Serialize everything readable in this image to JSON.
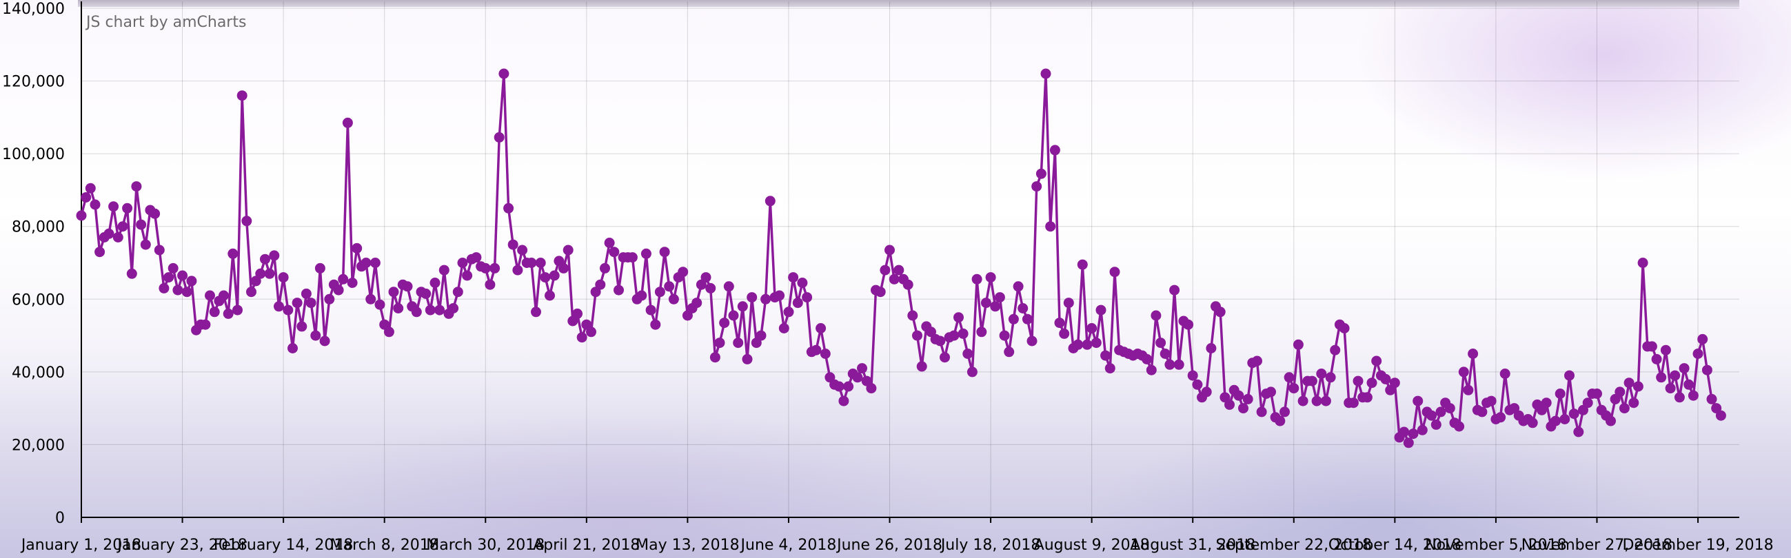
{
  "credit_text": "JS chart by amCharts",
  "colors": {
    "series": "#8a1a99",
    "grid": "#cfcfcf"
  },
  "chart_data": {
    "type": "line",
    "title": "",
    "xlabel": "",
    "ylabel": "",
    "ylim": [
      0,
      140000
    ],
    "yticks": [
      "0",
      "20,000",
      "40,000",
      "60,000",
      "80,000",
      "100,000",
      "120,000",
      "140,000"
    ],
    "xlim": [
      "2018-01-01",
      "2018-12-28"
    ],
    "xticks": [
      {
        "date": "2018-01-01",
        "label": "January 1, 2018"
      },
      {
        "date": "2018-01-23",
        "label": "January 23, 2018"
      },
      {
        "date": "2018-02-14",
        "label": "February 14, 2018"
      },
      {
        "date": "2018-03-08",
        "label": "March 8, 2018"
      },
      {
        "date": "2018-03-30",
        "label": "March 30, 2018"
      },
      {
        "date": "2018-04-21",
        "label": "April 21, 2018"
      },
      {
        "date": "2018-05-13",
        "label": "May 13, 2018"
      },
      {
        "date": "2018-06-04",
        "label": "June 4, 2018"
      },
      {
        "date": "2018-06-26",
        "label": "June 26, 2018"
      },
      {
        "date": "2018-07-18",
        "label": "July 18, 2018"
      },
      {
        "date": "2018-08-09",
        "label": "August 9, 2018"
      },
      {
        "date": "2018-08-31",
        "label": "August 31, 2018"
      },
      {
        "date": "2018-09-22",
        "label": "September 22, 2018"
      },
      {
        "date": "2018-10-14",
        "label": "October 14, 2018"
      },
      {
        "date": "2018-11-05",
        "label": "November 5, 2018"
      },
      {
        "date": "2018-11-27",
        "label": "November 27, 2018"
      },
      {
        "date": "2018-12-19",
        "label": "December 19, 2018"
      }
    ],
    "grid": true,
    "legend": "none",
    "x_start": "2018-01-01",
    "x_step_days": 1,
    "values": [
      83000,
      88000,
      90500,
      86000,
      73000,
      77000,
      78000,
      85500,
      77000,
      80000,
      85000,
      67000,
      91000,
      80500,
      75000,
      84500,
      83500,
      73500,
      63000,
      66000,
      68500,
      62500,
      66500,
      62000,
      65000,
      51500,
      53000,
      53000,
      61000,
      56500,
      59500,
      61000,
      56000,
      72500,
      57000,
      116000,
      81500,
      62000,
      65000,
      67000,
      71000,
      67000,
      72000,
      58000,
      66000,
      57000,
      46500,
      59000,
      52500,
      61500,
      59000,
      50000,
      68500,
      48500,
      60000,
      64000,
      62500,
      65500,
      108500,
      64500,
      74000,
      69000,
      70000,
      60000,
      70000,
      58500,
      53000,
      51000,
      62000,
      57500,
      64000,
      63500,
      58000,
      56500,
      62000,
      61500,
      57000,
      64500,
      57000,
      68000,
      56000,
      57500,
      62000,
      70000,
      66500,
      71000,
      71500,
      69000,
      68500,
      64000,
      68500,
      104500,
      122000,
      85000,
      75000,
      68000,
      73500,
      70000,
      70000,
      56500,
      70000,
      66000,
      61000,
      66500,
      70500,
      68500,
      73500,
      54000,
      56000,
      49500,
      53000,
      51000,
      62000,
      64000,
      68500,
      75500,
      73000,
      62500,
      71500,
      71500,
      71500,
      60000,
      61000,
      72500,
      57000,
      53000,
      62000,
      73000,
      63500,
      60000,
      66000,
      67500,
      55500,
      57500,
      59000,
      64000,
      66000,
      63000,
      44000,
      48000,
      53500,
      63500,
      55500,
      48000,
      58000,
      43500,
      60500,
      48000,
      50000,
      60000,
      87000,
      60500,
      61000,
      52000,
      56500,
      66000,
      59000,
      64500,
      60500,
      45500,
      46000,
      52000,
      45000,
      38500,
      36500,
      36000,
      32000,
      36000,
      39500,
      38500,
      41000,
      37500,
      35500,
      62500,
      62000,
      68000,
      73500,
      65500,
      68000,
      65500,
      64000,
      55500,
      50000,
      41500,
      52500,
      51000,
      49000,
      48500,
      44000,
      49500,
      50000,
      55000,
      50500,
      45000,
      40000,
      65500,
      51000,
      59000,
      66000,
      58000,
      60500,
      50000,
      45500,
      54500,
      63500,
      57500,
      54500,
      48500,
      91000,
      94500,
      122000,
      80000,
      101000,
      53500,
      50500,
      59000,
      46500,
      47500,
      69500,
      47500,
      52000,
      48000,
      57000,
      44500,
      41000,
      67500,
      46000,
      45500,
      45000,
      44500,
      45000,
      44500,
      43500,
      40500,
      55500,
      48000,
      45000,
      42000,
      62500,
      42000,
      54000,
      53000,
      39000,
      36500,
      33000,
      34500,
      46500,
      58000,
      56500,
      33000,
      31000,
      35000,
      33500,
      30000,
      32500,
      42500,
      43000,
      29000,
      34000,
      34500,
      27500,
      26500,
      29000,
      38500,
      35500,
      47500,
      32000,
      37500,
      37500,
      32000,
      39500,
      32000,
      38500,
      46000,
      53000,
      52000,
      31500,
      31500,
      37500,
      33000,
      33000,
      37000,
      43000,
      39000,
      38000,
      35000,
      37000,
      22000,
      23500,
      20500,
      23000,
      32000,
      24000,
      29000,
      28000,
      25500,
      29000,
      31500,
      30000,
      26000,
      25000,
      40000,
      35000,
      45000,
      29500,
      29000,
      31500,
      32000,
      27000,
      27500,
      39500,
      29500,
      30000,
      28000,
      26500,
      27000,
      26000,
      31000,
      29500,
      31500,
      25000,
      26500,
      34000,
      27000,
      39000,
      28500,
      23500,
      29500,
      31500,
      34000,
      34000,
      29500,
      28000,
      26500,
      32500,
      34500,
      30000,
      37000,
      31500,
      36000,
      70000,
      47000,
      47000,
      43500,
      38500,
      46000,
      35500,
      39000,
      33000,
      41000,
      36500,
      33500,
      45000,
      49000,
      40500,
      32500,
      30000,
      28000
    ]
  }
}
